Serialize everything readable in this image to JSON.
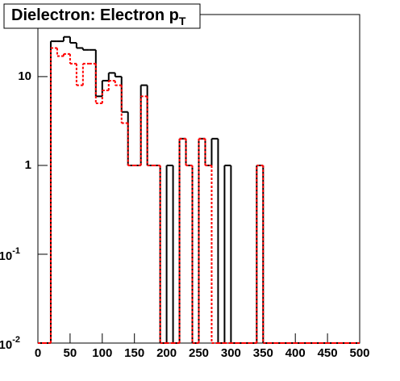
{
  "chart_data": {
    "type": "histogram",
    "title": {
      "text": "Dielectron: Electron p",
      "subscript": "T"
    },
    "bins": [
      0,
      10,
      20,
      30,
      40,
      50,
      60,
      70,
      80,
      90,
      100,
      110,
      120,
      130,
      140,
      150,
      160,
      170,
      180,
      190,
      200,
      210,
      220,
      230,
      240,
      250,
      260,
      270,
      280,
      290,
      300,
      310,
      320,
      330,
      340,
      350,
      360,
      370,
      380,
      390,
      400,
      410,
      420,
      430,
      440,
      450,
      460,
      470,
      480,
      490,
      500
    ],
    "series": [
      {
        "color": "#000000",
        "dash": false,
        "values": [
          0,
          0,
          25,
          25,
          28,
          24,
          21,
          20,
          20,
          6,
          9,
          11,
          10,
          4,
          1,
          1,
          8,
          1,
          1,
          0,
          1,
          0,
          2,
          1,
          0,
          2,
          1,
          2,
          0,
          1,
          0,
          0,
          0,
          0,
          1,
          0,
          0,
          0,
          0,
          0,
          0,
          0,
          0,
          0,
          0,
          0,
          0,
          0,
          0,
          0
        ]
      },
      {
        "color": "#ff0000",
        "dash": true,
        "values": [
          0,
          0,
          21,
          17,
          18,
          14,
          8,
          14,
          14,
          5,
          7,
          9,
          8,
          3,
          1,
          1,
          6,
          1,
          1,
          0,
          0,
          0,
          2,
          1,
          0,
          2,
          1,
          0,
          0,
          0,
          0,
          0,
          0,
          0,
          1,
          0,
          0,
          0,
          0,
          0,
          0,
          0,
          0,
          0,
          0,
          0,
          0,
          0,
          0,
          0
        ]
      }
    ],
    "log_y": true,
    "xlim": [
      0,
      500
    ],
    "xticks": [
      0,
      50,
      100,
      150,
      200,
      250,
      300,
      350,
      400,
      450,
      500
    ],
    "ylim": [
      0.01,
      50
    ],
    "yticks": [
      {
        "value": 0.01,
        "label": "10",
        "exponent": "-2"
      },
      {
        "value": 0.1,
        "label": "10",
        "exponent": "-1"
      },
      1,
      10
    ]
  }
}
